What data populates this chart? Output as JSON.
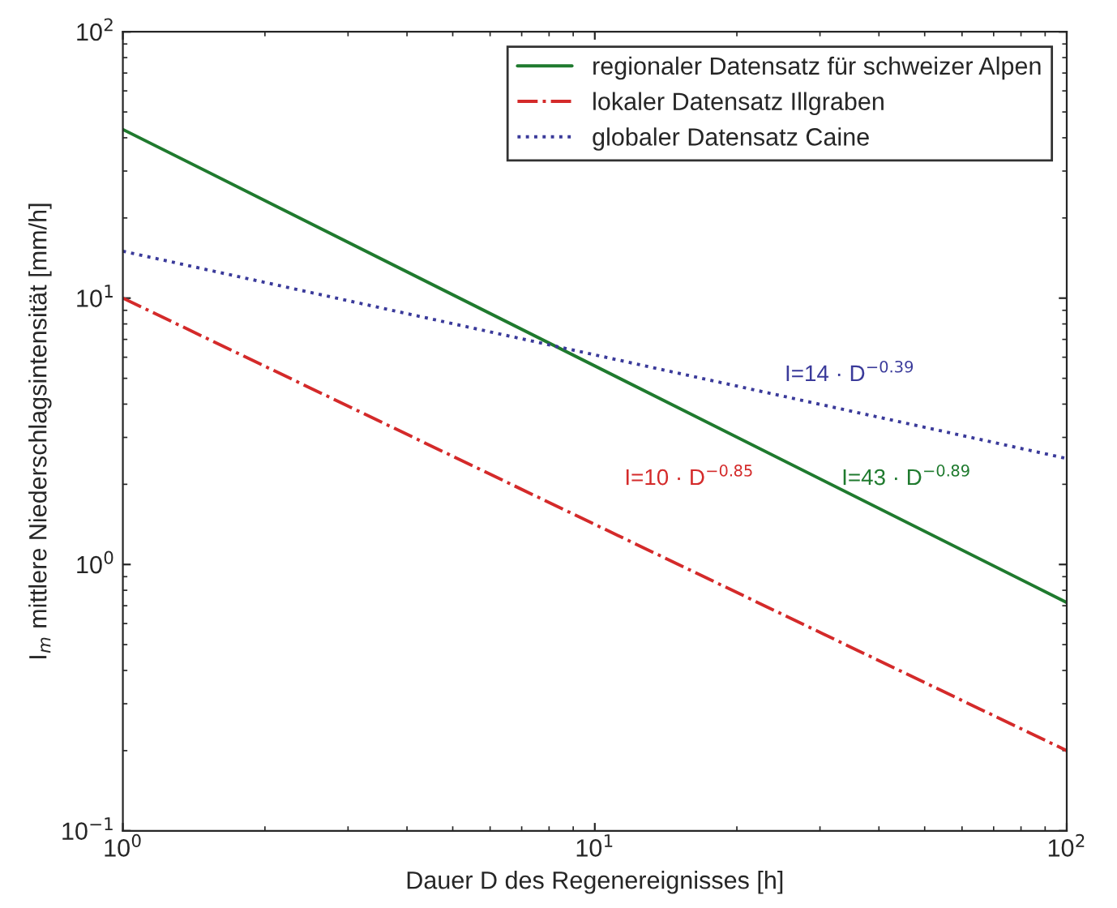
{
  "chart_data": {
    "type": "line",
    "xlabel": "Dauer D des Regenereignisses [h]",
    "ylabel": "I$_{m}$ mittlere Niederschlagsintensität [mm/h]",
    "x": [
      1,
      100
    ],
    "series": [
      {
        "name": "regionaler Datensatz für schweizer Alpen",
        "color": "#1f7a2e",
        "values": [
          43,
          0.72
        ],
        "line_style": "solid"
      },
      {
        "name": "lokaler Datensatz Illgraben",
        "color": "#d42a2a",
        "values": [
          10,
          0.2
        ],
        "line_style": "dashdot"
      },
      {
        "name": "globaler Datensatz Caine",
        "color": "#3a3a9a",
        "values": [
          15,
          2.5
        ],
        "line_style": "dotted"
      }
    ],
    "annotations": [
      "I=43 · D$^{−0.89}$",
      "I=10 · D$^{−0.85}$",
      "I=14 · D$^{−0.39}$"
    ],
    "log": "xy",
    "xlim": [
      1,
      100
    ],
    "ylim": [
      0.1,
      100
    ],
    "xticks": [
      {
        "value": 1,
        "label": "10$^{0}$"
      },
      {
        "value": 10,
        "label": "10$^{1}$"
      },
      {
        "value": 100,
        "label": "10$^{2}$"
      }
    ],
    "yticks": [
      {
        "value": 0.1,
        "label": "10$^{−1}$"
      },
      {
        "value": 1,
        "label": "10$^{0}$"
      },
      {
        "value": 10,
        "label": "10$^{1}$"
      },
      {
        "value": 100,
        "label": "10$^{2}$"
      }
    ],
    "grid": false,
    "legend": "top right"
  }
}
